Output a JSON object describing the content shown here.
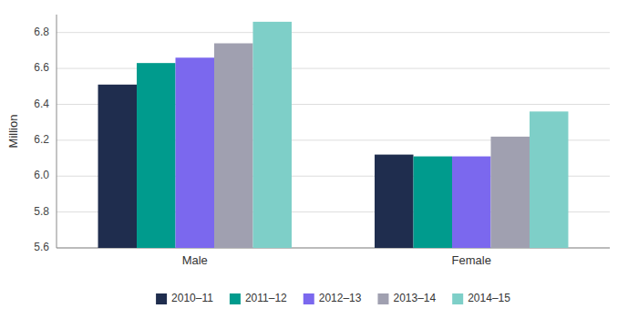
{
  "chart_data": {
    "type": "bar",
    "ylabel": "Million",
    "categories": [
      "Male",
      "Female"
    ],
    "series": [
      {
        "name": "2010–11",
        "color": "#1f2d4e",
        "values": [
          6.51,
          6.12
        ]
      },
      {
        "name": "2011–12",
        "color": "#009b8d",
        "values": [
          6.63,
          6.11
        ]
      },
      {
        "name": "2012–13",
        "color": "#7b68ee",
        "values": [
          6.66,
          6.11
        ]
      },
      {
        "name": "2013–14",
        "color": "#a0a0b0",
        "values": [
          6.74,
          6.22
        ]
      },
      {
        "name": "2014–15",
        "color": "#7ecfc8",
        "values": [
          6.86,
          6.36
        ]
      }
    ],
    "ylim": [
      5.6,
      6.9
    ],
    "yticks": [
      5.6,
      5.8,
      {
        "value": 6.0,
        "label": "6.0"
      },
      6.2,
      6.4,
      6.6,
      6.8
    ],
    "grid": true,
    "legend": "bottom"
  }
}
